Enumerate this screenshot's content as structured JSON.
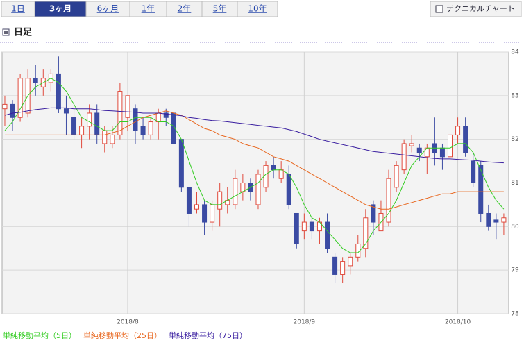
{
  "tabs": [
    "1日",
    "3ヶ月",
    "6ヶ月",
    "1年",
    "2年",
    "5年",
    "10年"
  ],
  "selected_tab": 1,
  "button": "テクニカルチャート",
  "chart_data": {
    "type": "candlestick",
    "title": "日足",
    "categories": [
      null,
      null,
      null,
      null,
      null,
      null,
      null,
      null,
      null,
      null,
      null,
      null,
      null,
      null,
      null,
      null,
      "2018/8",
      null,
      null,
      null,
      null,
      null,
      null,
      null,
      null,
      null,
      null,
      null,
      null,
      null,
      null,
      null,
      null,
      null,
      null,
      null,
      null,
      null,
      null,
      "2018/9",
      null,
      null,
      null,
      null,
      null,
      null,
      null,
      null,
      null,
      null,
      null,
      null,
      null,
      null,
      null,
      null,
      null,
      null,
      null,
      "2018/10",
      null,
      null,
      null,
      null,
      null,
      null
    ],
    "open": [
      82.7,
      82.8,
      82.5,
      82.6,
      83.4,
      83.2,
      83.3,
      83.5,
      82.7,
      82.5,
      82.1,
      82.3,
      82.6,
      81.9,
      81.9,
      82.1,
      82.5,
      82.7,
      82.3,
      82.1,
      82.4,
      82.6,
      82.6,
      82.0,
      80.9,
      80.4,
      80.5,
      80.1,
      80.4,
      80.5,
      80.5,
      80.8,
      81.0,
      80.5,
      80.9,
      81.4,
      81.1,
      81.2,
      80.3,
      79.9,
      80.1,
      79.9,
      80.1,
      79.3,
      78.9,
      79.1,
      79.3,
      79.5,
      80.5,
      79.9,
      80.1,
      80.9,
      81.3,
      81.85,
      81.8,
      81.6,
      81.9,
      81.8,
      81.6,
      82.1,
      82.3,
      81.5,
      81.4,
      80.3,
      80.15,
      80.1
    ],
    "high": [
      83.0,
      82.9,
      83.5,
      83.6,
      83.7,
      83.6,
      83.6,
      83.9,
      83.0,
      82.7,
      82.5,
      82.8,
      82.8,
      82.3,
      82.3,
      83.3,
      83.0,
      82.8,
      82.5,
      82.5,
      82.7,
      82.7,
      82.6,
      82.0,
      80.9,
      80.8,
      80.6,
      80.6,
      81.0,
      80.9,
      81.3,
      81.2,
      81.1,
      81.3,
      81.5,
      81.6,
      81.5,
      81.4,
      80.3,
      80.3,
      80.2,
      80.2,
      80.3,
      79.4,
      79.3,
      79.4,
      79.8,
      80.4,
      80.6,
      80.6,
      81.3,
      81.5,
      82.0,
      82.1,
      81.9,
      81.9,
      82.5,
      81.9,
      82.2,
      82.5,
      82.5,
      81.7,
      81.5,
      80.5,
      80.3,
      80.3
    ],
    "low": [
      82.3,
      82.2,
      82.4,
      82.5,
      83.0,
      83.0,
      83.1,
      82.6,
      82.1,
      82.0,
      81.8,
      82.0,
      81.9,
      81.7,
      81.8,
      82.0,
      82.2,
      81.9,
      82.0,
      82.0,
      82.0,
      82.3,
      81.9,
      80.8,
      80.0,
      80.3,
      79.8,
      79.9,
      80.0,
      80.3,
      80.4,
      80.6,
      80.6,
      80.4,
      80.8,
      81.1,
      81.0,
      80.4,
      79.5,
      79.7,
      79.7,
      79.6,
      79.4,
      78.7,
      78.7,
      78.9,
      79.2,
      79.3,
      79.8,
      79.9,
      80.0,
      80.8,
      81.2,
      81.7,
      81.5,
      81.2,
      81.4,
      81.3,
      81.4,
      81.9,
      81.6,
      80.9,
      80.1,
      79.9,
      79.7,
      79.8
    ],
    "close": [
      82.8,
      82.5,
      83.4,
      83.4,
      83.3,
      83.4,
      83.5,
      82.7,
      82.6,
      82.1,
      82.3,
      82.6,
      82.1,
      82.2,
      82.1,
      83.1,
      83.0,
      82.2,
      82.1,
      82.4,
      82.6,
      82.5,
      81.9,
      80.9,
      80.3,
      80.5,
      80.1,
      80.5,
      80.8,
      80.6,
      81.1,
      81.0,
      80.8,
      81.2,
      81.4,
      81.3,
      81.3,
      80.5,
      79.6,
      80.1,
      79.9,
      80.1,
      79.5,
      78.9,
      79.2,
      79.3,
      79.6,
      80.2,
      80.1,
      80.3,
      81.1,
      81.4,
      81.9,
      81.9,
      81.7,
      81.8,
      81.7,
      81.6,
      82.1,
      82.3,
      81.7,
      81.0,
      80.3,
      80.0,
      80.1,
      80.2
    ],
    "up_color": "#e04a3c",
    "down_color": "#3b4ba3",
    "series": [
      {
        "name": "単純移動平均（5日）",
        "color": "#33cc22",
        "values": [
          82.2,
          82.4,
          82.7,
          83.0,
          83.2,
          83.3,
          83.4,
          83.3,
          83.1,
          82.8,
          82.5,
          82.4,
          82.3,
          82.2,
          82.2,
          82.4,
          82.4,
          82.5,
          82.5,
          82.5,
          82.4,
          82.4,
          82.3,
          82.0,
          81.5,
          81.0,
          80.6,
          80.5,
          80.5,
          80.6,
          80.7,
          80.8,
          80.9,
          81.0,
          81.2,
          81.3,
          81.3,
          81.2,
          80.9,
          80.5,
          80.2,
          80.1,
          79.9,
          79.7,
          79.5,
          79.4,
          79.4,
          79.6,
          79.9,
          80.1,
          80.3,
          80.6,
          81.0,
          81.4,
          81.6,
          81.8,
          81.8,
          81.8,
          81.8,
          81.9,
          81.9,
          81.7,
          81.3,
          80.9,
          80.6,
          80.4
        ]
      },
      {
        "name": "単純移動平均（25日）",
        "color": "#e8661e",
        "values": [
          82.1,
          82.1,
          82.1,
          82.1,
          82.1,
          82.1,
          82.1,
          82.1,
          82.1,
          82.1,
          82.1,
          82.1,
          82.1,
          82.1,
          82.15,
          82.2,
          82.3,
          82.4,
          82.5,
          82.55,
          82.6,
          82.65,
          82.6,
          82.55,
          82.45,
          82.35,
          82.25,
          82.2,
          82.1,
          82.05,
          82.0,
          81.9,
          81.85,
          81.8,
          81.7,
          81.6,
          81.55,
          81.5,
          81.4,
          81.3,
          81.2,
          81.1,
          81.0,
          80.9,
          80.8,
          80.7,
          80.6,
          80.5,
          80.45,
          80.4,
          80.4,
          80.45,
          80.5,
          80.55,
          80.6,
          80.65,
          80.7,
          80.75,
          80.75,
          80.8,
          80.8,
          80.8,
          80.8,
          80.8,
          80.8,
          80.8
        ]
      },
      {
        "name": "単純移動平均（75日）",
        "color": "#3a1fa0",
        "values": [
          82.55,
          82.6,
          82.62,
          82.65,
          82.68,
          82.7,
          82.72,
          82.72,
          82.72,
          82.7,
          82.7,
          82.7,
          82.68,
          82.66,
          82.65,
          82.64,
          82.63,
          82.62,
          82.6,
          82.6,
          82.6,
          82.58,
          82.56,
          82.54,
          82.5,
          82.48,
          82.45,
          82.43,
          82.42,
          82.4,
          82.38,
          82.36,
          82.34,
          82.32,
          82.3,
          82.28,
          82.26,
          82.22,
          82.18,
          82.12,
          82.06,
          82.0,
          81.96,
          81.92,
          81.88,
          81.84,
          81.8,
          81.76,
          81.72,
          81.7,
          81.68,
          81.66,
          81.64,
          81.62,
          81.6,
          81.58,
          81.56,
          81.55,
          81.55,
          81.54,
          81.53,
          81.52,
          81.5,
          81.48,
          81.47,
          81.46
        ]
      }
    ],
    "ylim": [
      78,
      84
    ],
    "yticks": [
      78,
      79,
      80,
      81,
      82,
      83,
      84
    ],
    "grid": true
  }
}
